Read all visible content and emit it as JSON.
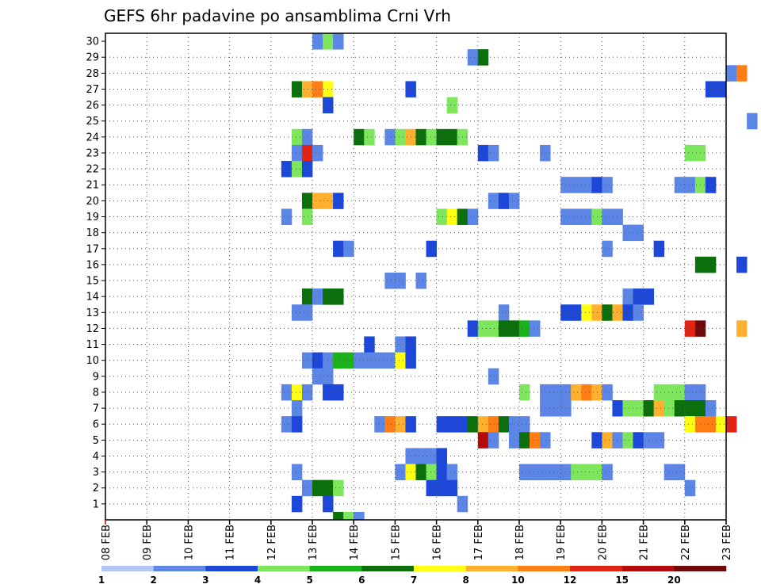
{
  "chart_data": {
    "type": "heatmap",
    "title": "GEFS 6hr padavine po ansamblima Crni Vrh",
    "x_labels": [
      "08 FEB",
      "09 FEB",
      "10 FEB",
      "11 FEB",
      "12 FEB",
      "13 FEB",
      "14 FEB",
      "15 FEB",
      "16 FEB",
      "17 FEB",
      "18 FEB",
      "19 FEB",
      "20 FEB",
      "21 FEB",
      "22 FEB",
      "23 FEB"
    ],
    "y_labels": [
      "1",
      "2",
      "3",
      "4",
      "5",
      "6",
      "7",
      "8",
      "9",
      "10",
      "11",
      "12",
      "13",
      "14",
      "15",
      "16",
      "17",
      "18",
      "19",
      "20",
      "21",
      "22",
      "23",
      "24",
      "25",
      "26",
      "27",
      "28",
      "29",
      "30"
    ],
    "ylim": [
      0,
      30
    ],
    "steps_per_day": 4,
    "grid": true,
    "legend": "bottom",
    "colorbar": {
      "labels": [
        "1",
        "2",
        "3",
        "4",
        "5",
        "6",
        "7",
        "8",
        "10",
        "12",
        "15",
        "20"
      ],
      "colors": [
        "#b3c6f5",
        "#5c86e6",
        "#1c47d9",
        "#7ee65c",
        "#19b319",
        "#0b700b",
        "#ffff14",
        "#ffb02e",
        "#ff7d14",
        "#e32414",
        "#b30a0a",
        "#700a0a"
      ]
    },
    "cells": [
      [
        30,
        20,
        1
      ],
      [
        30,
        21,
        3
      ],
      [
        30,
        22,
        1
      ],
      [
        29,
        35,
        1
      ],
      [
        29,
        36,
        5
      ],
      [
        28,
        60,
        1
      ],
      [
        28,
        61,
        8
      ],
      [
        27,
        18,
        5
      ],
      [
        27,
        19,
        7
      ],
      [
        27,
        20,
        8
      ],
      [
        27,
        21,
        6
      ],
      [
        27,
        29,
        2
      ],
      [
        27,
        58,
        2
      ],
      [
        27,
        59,
        2
      ],
      [
        26,
        21,
        2
      ],
      [
        26,
        33,
        3
      ],
      [
        25,
        62,
        1
      ],
      [
        24,
        18,
        3
      ],
      [
        24,
        19,
        1
      ],
      [
        24,
        24,
        5
      ],
      [
        24,
        25,
        3
      ],
      [
        24,
        27,
        1
      ],
      [
        24,
        28,
        3
      ],
      [
        24,
        29,
        7
      ],
      [
        24,
        30,
        5
      ],
      [
        24,
        31,
        3
      ],
      [
        24,
        32,
        5
      ],
      [
        24,
        33,
        5
      ],
      [
        24,
        34,
        3
      ],
      [
        23,
        18,
        1
      ],
      [
        23,
        19,
        9
      ],
      [
        23,
        20,
        1
      ],
      [
        23,
        36,
        2
      ],
      [
        23,
        37,
        1
      ],
      [
        23,
        42,
        1
      ],
      [
        23,
        56,
        3
      ],
      [
        23,
        57,
        3
      ],
      [
        22,
        17,
        2
      ],
      [
        22,
        18,
        3
      ],
      [
        22,
        19,
        2
      ],
      [
        21,
        44,
        1
      ],
      [
        21,
        45,
        1
      ],
      [
        21,
        46,
        1
      ],
      [
        21,
        47,
        2
      ],
      [
        21,
        48,
        1
      ],
      [
        21,
        55,
        1
      ],
      [
        21,
        56,
        1
      ],
      [
        21,
        57,
        3
      ],
      [
        21,
        58,
        2
      ],
      [
        20,
        19,
        5
      ],
      [
        20,
        20,
        7
      ],
      [
        20,
        21,
        7
      ],
      [
        20,
        22,
        2
      ],
      [
        20,
        37,
        1
      ],
      [
        20,
        38,
        2
      ],
      [
        20,
        39,
        1
      ],
      [
        19,
        17,
        1
      ],
      [
        19,
        19,
        3
      ],
      [
        19,
        32,
        3
      ],
      [
        19,
        33,
        6
      ],
      [
        19,
        34,
        5
      ],
      [
        19,
        35,
        1
      ],
      [
        19,
        44,
        1
      ],
      [
        19,
        45,
        1
      ],
      [
        19,
        46,
        1
      ],
      [
        19,
        47,
        3
      ],
      [
        19,
        48,
        1
      ],
      [
        19,
        49,
        1
      ],
      [
        18,
        50,
        1
      ],
      [
        18,
        51,
        1
      ],
      [
        17,
        22,
        2
      ],
      [
        17,
        23,
        1
      ],
      [
        17,
        31,
        2
      ],
      [
        17,
        48,
        1
      ],
      [
        17,
        53,
        2
      ],
      [
        16,
        57,
        5
      ],
      [
        16,
        58,
        5
      ],
      [
        16,
        61,
        2
      ],
      [
        15,
        27,
        1
      ],
      [
        15,
        28,
        1
      ],
      [
        15,
        30,
        1
      ],
      [
        14,
        19,
        5
      ],
      [
        14,
        20,
        1
      ],
      [
        14,
        21,
        5
      ],
      [
        14,
        22,
        5
      ],
      [
        14,
        50,
        1
      ],
      [
        14,
        51,
        2
      ],
      [
        14,
        52,
        2
      ],
      [
        13,
        18,
        1
      ],
      [
        13,
        19,
        1
      ],
      [
        13,
        38,
        1
      ],
      [
        13,
        44,
        2
      ],
      [
        13,
        45,
        2
      ],
      [
        13,
        46,
        6
      ],
      [
        13,
        47,
        7
      ],
      [
        13,
        48,
        5
      ],
      [
        13,
        49,
        7
      ],
      [
        13,
        50,
        2
      ],
      [
        13,
        51,
        1
      ],
      [
        12,
        35,
        2
      ],
      [
        12,
        36,
        3
      ],
      [
        12,
        37,
        3
      ],
      [
        12,
        38,
        5
      ],
      [
        12,
        39,
        5
      ],
      [
        12,
        40,
        4
      ],
      [
        12,
        41,
        1
      ],
      [
        12,
        56,
        9
      ],
      [
        12,
        57,
        11
      ],
      [
        12,
        61,
        7
      ],
      [
        11,
        25,
        2
      ],
      [
        11,
        28,
        1
      ],
      [
        11,
        29,
        2
      ],
      [
        10,
        19,
        1
      ],
      [
        10,
        20,
        2
      ],
      [
        10,
        21,
        1
      ],
      [
        10,
        22,
        4
      ],
      [
        10,
        23,
        4
      ],
      [
        10,
        24,
        1
      ],
      [
        10,
        25,
        1
      ],
      [
        10,
        26,
        1
      ],
      [
        10,
        27,
        1
      ],
      [
        10,
        28,
        6
      ],
      [
        10,
        29,
        2
      ],
      [
        9,
        20,
        1
      ],
      [
        9,
        21,
        1
      ],
      [
        9,
        37,
        1
      ],
      [
        8,
        17,
        1
      ],
      [
        8,
        18,
        6
      ],
      [
        8,
        19,
        1
      ],
      [
        8,
        21,
        2
      ],
      [
        8,
        22,
        2
      ],
      [
        8,
        40,
        3
      ],
      [
        8,
        42,
        1
      ],
      [
        8,
        43,
        1
      ],
      [
        8,
        44,
        1
      ],
      [
        8,
        45,
        7
      ],
      [
        8,
        46,
        8
      ],
      [
        8,
        47,
        7
      ],
      [
        8,
        48,
        1
      ],
      [
        8,
        53,
        3
      ],
      [
        8,
        54,
        3
      ],
      [
        8,
        55,
        3
      ],
      [
        8,
        56,
        1
      ],
      [
        8,
        57,
        1
      ],
      [
        7,
        18,
        1
      ],
      [
        7,
        42,
        1
      ],
      [
        7,
        43,
        1
      ],
      [
        7,
        44,
        1
      ],
      [
        7,
        49,
        2
      ],
      [
        7,
        50,
        3
      ],
      [
        7,
        51,
        3
      ],
      [
        7,
        52,
        5
      ],
      [
        7,
        53,
        7
      ],
      [
        7,
        54,
        3
      ],
      [
        7,
        55,
        5
      ],
      [
        7,
        56,
        5
      ],
      [
        7,
        57,
        5
      ],
      [
        7,
        58,
        1
      ],
      [
        6,
        17,
        1
      ],
      [
        6,
        18,
        2
      ],
      [
        6,
        26,
        1
      ],
      [
        6,
        27,
        8
      ],
      [
        6,
        28,
        7
      ],
      [
        6,
        29,
        2
      ],
      [
        6,
        32,
        2
      ],
      [
        6,
        33,
        2
      ],
      [
        6,
        34,
        2
      ],
      [
        6,
        35,
        5
      ],
      [
        6,
        36,
        7
      ],
      [
        6,
        37,
        8
      ],
      [
        6,
        38,
        5
      ],
      [
        6,
        39,
        1
      ],
      [
        6,
        40,
        1
      ],
      [
        6,
        56,
        6
      ],
      [
        6,
        57,
        8
      ],
      [
        6,
        58,
        8
      ],
      [
        6,
        59,
        6
      ],
      [
        6,
        60,
        9
      ],
      [
        5,
        36,
        10
      ],
      [
        5,
        37,
        1
      ],
      [
        5,
        39,
        1
      ],
      [
        5,
        40,
        5
      ],
      [
        5,
        41,
        8
      ],
      [
        5,
        42,
        1
      ],
      [
        5,
        47,
        2
      ],
      [
        5,
        48,
        7
      ],
      [
        5,
        49,
        1
      ],
      [
        5,
        50,
        3
      ],
      [
        5,
        51,
        2
      ],
      [
        5,
        52,
        1
      ],
      [
        5,
        53,
        1
      ],
      [
        4,
        29,
        1
      ],
      [
        4,
        30,
        1
      ],
      [
        4,
        31,
        1
      ],
      [
        4,
        32,
        2
      ],
      [
        3,
        18,
        1
      ],
      [
        3,
        28,
        1
      ],
      [
        3,
        29,
        6
      ],
      [
        3,
        30,
        5
      ],
      [
        3,
        31,
        3
      ],
      [
        3,
        32,
        2
      ],
      [
        3,
        33,
        1
      ],
      [
        3,
        40,
        1
      ],
      [
        3,
        41,
        1
      ],
      [
        3,
        42,
        1
      ],
      [
        3,
        43,
        1
      ],
      [
        3,
        44,
        1
      ],
      [
        3,
        45,
        3
      ],
      [
        3,
        46,
        3
      ],
      [
        3,
        47,
        3
      ],
      [
        3,
        48,
        1
      ],
      [
        3,
        54,
        1
      ],
      [
        3,
        55,
        1
      ],
      [
        2,
        19,
        1
      ],
      [
        2,
        20,
        5
      ],
      [
        2,
        21,
        5
      ],
      [
        2,
        22,
        3
      ],
      [
        2,
        31,
        2
      ],
      [
        2,
        32,
        2
      ],
      [
        2,
        33,
        2
      ],
      [
        2,
        56,
        1
      ],
      [
        1,
        18,
        2
      ],
      [
        1,
        21,
        2
      ],
      [
        1,
        34,
        1
      ],
      [
        0,
        22,
        5
      ],
      [
        0,
        23,
        3
      ],
      [
        0,
        24,
        1
      ]
    ]
  }
}
